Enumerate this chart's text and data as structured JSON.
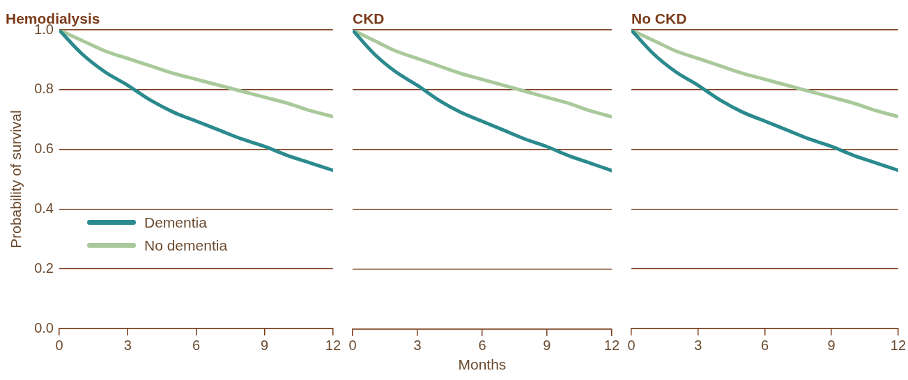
{
  "chart_data": [
    {
      "type": "line",
      "title": "Hemodialysis",
      "ylabel": "Probability of survival",
      "legend": "bottom left",
      "grid": "y",
      "xlim": [
        0,
        12
      ],
      "xticks": [
        0,
        3,
        6,
        9,
        12
      ],
      "ylim": [
        0,
        1
      ],
      "yticks": [
        {
          "value": 0,
          "label": "0.0"
        },
        0.2,
        0.4,
        0.6,
        0.8,
        {
          "value": 1,
          "label": "1.0"
        }
      ],
      "series": [
        {
          "name": "Dementia",
          "color": "#2b8a8e",
          "x": [
            0,
            1,
            2,
            3,
            4,
            5,
            6,
            7,
            8,
            9,
            10,
            11,
            12
          ],
          "values": [
            1.0,
            0.92,
            0.86,
            0.815,
            0.765,
            0.725,
            0.695,
            0.665,
            0.635,
            0.61,
            0.58,
            0.555,
            0.53
          ]
        },
        {
          "name": "No dementia",
          "color": "#a9c99b",
          "x": [
            0,
            1,
            2,
            3,
            4,
            5,
            6,
            7,
            8,
            9,
            10,
            11,
            12
          ],
          "values": [
            1.0,
            0.965,
            0.93,
            0.905,
            0.88,
            0.855,
            0.835,
            0.815,
            0.795,
            0.775,
            0.755,
            0.73,
            0.71
          ]
        }
      ]
    },
    {
      "type": "line",
      "title": "CKD",
      "xlabel": "Months",
      "grid": "y",
      "tick_labels": "x",
      "xlim": [
        0,
        12
      ],
      "xticks": [
        0,
        3,
        6,
        9,
        12
      ],
      "ylim": [
        0,
        1
      ],
      "yticks": [
        0,
        0.2,
        0.4,
        0.6,
        0.8,
        1
      ],
      "series": [
        {
          "color": "#2b8a8e",
          "x": [
            0,
            1,
            2,
            3,
            4,
            5,
            6,
            7,
            8,
            9,
            10,
            11,
            12
          ],
          "values": [
            1.0,
            0.92,
            0.86,
            0.815,
            0.765,
            0.725,
            0.695,
            0.665,
            0.635,
            0.61,
            0.58,
            0.555,
            0.53
          ]
        },
        {
          "color": "#a9c99b",
          "x": [
            0,
            1,
            2,
            3,
            4,
            5,
            6,
            7,
            8,
            9,
            10,
            11,
            12
          ],
          "values": [
            1.0,
            0.965,
            0.93,
            0.905,
            0.88,
            0.855,
            0.835,
            0.815,
            0.795,
            0.775,
            0.755,
            0.73,
            0.71
          ]
        }
      ]
    },
    {
      "type": "line",
      "title": "No CKD",
      "grid": "y",
      "tick_labels": "x",
      "xlim": [
        0,
        12
      ],
      "xticks": [
        0,
        3,
        6,
        9,
        12
      ],
      "ylim": [
        0,
        1
      ],
      "yticks": [
        0,
        0.2,
        0.4,
        0.6,
        0.8,
        1
      ],
      "series": [
        {
          "color": "#2b8a8e",
          "x": [
            0,
            1,
            2,
            3,
            4,
            5,
            6,
            7,
            8,
            9,
            10,
            11,
            12
          ],
          "values": [
            1.0,
            0.92,
            0.86,
            0.815,
            0.765,
            0.725,
            0.695,
            0.665,
            0.635,
            0.61,
            0.58,
            0.555,
            0.53
          ]
        },
        {
          "color": "#a9c99b",
          "x": [
            0,
            1,
            2,
            3,
            4,
            5,
            6,
            7,
            8,
            9,
            10,
            11,
            12
          ],
          "values": [
            1.0,
            0.965,
            0.93,
            0.905,
            0.88,
            0.855,
            0.835,
            0.815,
            0.795,
            0.775,
            0.755,
            0.73,
            0.71
          ]
        }
      ]
    }
  ]
}
